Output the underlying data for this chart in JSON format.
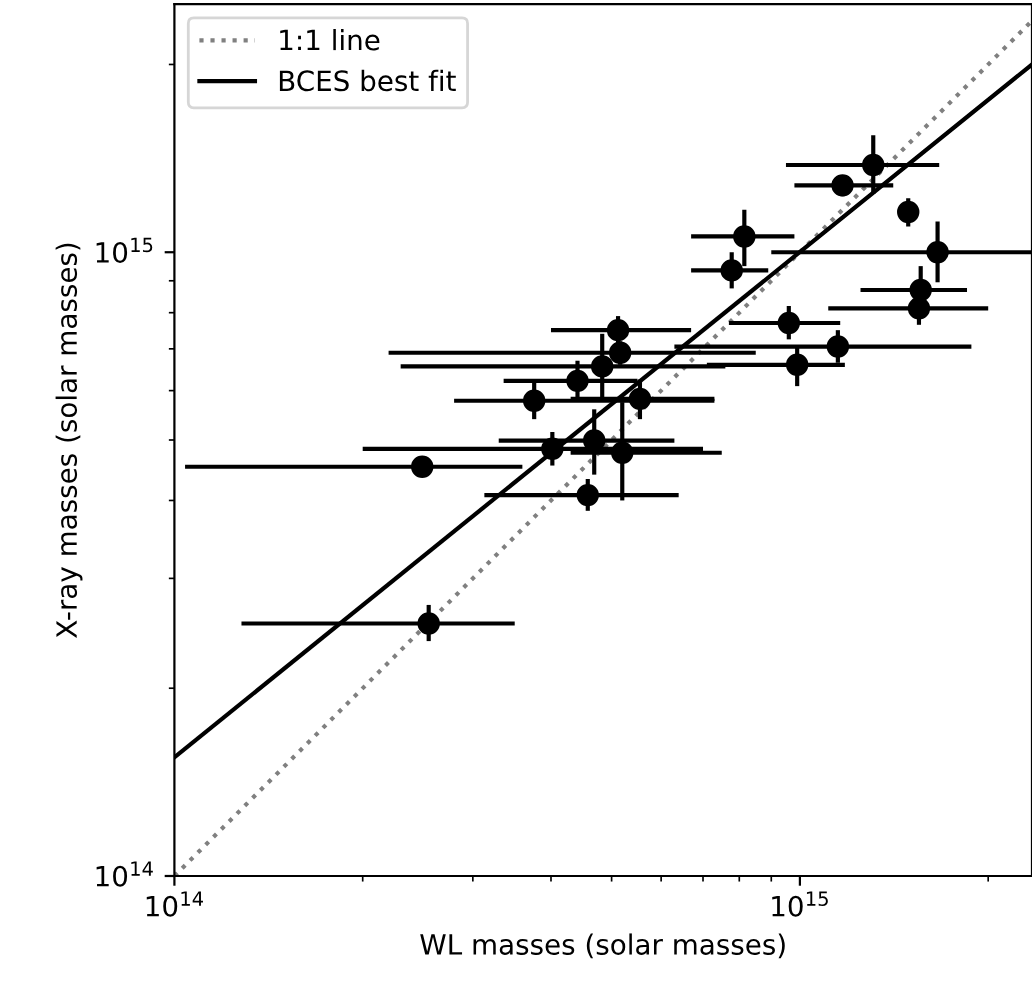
{
  "chart_data": {
    "type": "scatter",
    "xlabel": "WL masses (solar masses)",
    "ylabel": "X-ray masses (solar masses)",
    "log": "xy",
    "xlim": [
      100000000000000.0,
      2350000000000000.0
    ],
    "ylim": [
      100000000000000.0,
      2500000000000000.0
    ],
    "xticks": [
      {
        "value": 100000000000000.0,
        "label": "10$^{14}$"
      },
      {
        "value": 1000000000000000.0,
        "label": "10$^{15}$"
      }
    ],
    "yticks": [
      {
        "value": 100000000000000.0,
        "label": "10$^{14}$"
      },
      {
        "value": 1000000000000000.0,
        "label": "10$^{15}$"
      }
    ],
    "legend": "top left",
    "grid": false,
    "series": [
      {
        "name": "1:1 line",
        "type": "line",
        "color": "#808080",
        "line_style": "dotted",
        "marker": "none",
        "x": [
          100000000000000.0,
          2350000000000000.0
        ],
        "values": [
          100000000000000.0,
          2350000000000000.0
        ]
      },
      {
        "name": "BCES best fit",
        "type": "line",
        "color": "#000000",
        "line_style": "solid",
        "marker": "none",
        "x": [
          100000000000000.0,
          2350000000000000.0
        ],
        "values": [
          155000000000000.0,
          2000000000000000.0
        ]
      },
      {
        "color": "#000000",
        "marker": "circle",
        "x": [
          1310000000000000.0,
          1170000000000000.0,
          1490000000000000.0,
          1660000000000000.0,
          815000000000000.0,
          778000000000000.0,
          1560000000000000.0,
          1550000000000000.0,
          960000000000000.0,
          1150000000000000.0,
          990000000000000.0,
          512000000000000.0,
          516000000000000.0,
          483000000000000.0,
          441000000000000.0,
          376000000000000.0,
          555000000000000.0,
          469000000000000.0,
          402000000000000.0,
          520000000000000.0,
          249000000000000.0,
          458000000000000.0,
          255000000000000.0
        ],
        "values": [
          1380000000000000.0,
          1280000000000000.0,
          1160000000000000.0,
          1000000000000000.0,
          1060000000000000.0,
          935000000000000.0,
          870000000000000.0,
          813000000000000.0,
          770000000000000.0,
          706000000000000.0,
          660000000000000.0,
          750000000000000.0,
          690000000000000.0,
          656000000000000.0,
          622000000000000.0,
          578000000000000.0,
          582000000000000.0,
          499000000000000.0,
          484000000000000.0,
          477000000000000.0,
          453000000000000.0,
          408000000000000.0,
          254000000000000.0
        ],
        "xerrors": [
          [
            950000000000000.0,
            1670000000000000.0
          ],
          [
            980000000000000.0,
            1410000000000000.0
          ],
          null,
          [
            900000000000000.0,
            2350000000000000.0
          ],
          [
            670000000000000.0,
            980000000000000.0
          ],
          [
            670000000000000.0,
            890000000000000.0
          ],
          [
            1250000000000000.0,
            1850000000000000.0
          ],
          [
            1110000000000000.0,
            2000000000000000.0
          ],
          [
            770000000000000.0,
            1160000000000000.0
          ],
          [
            630000000000000.0,
            1880000000000000.0
          ],
          [
            710000000000000.0,
            1180000000000000.0
          ],
          [
            400000000000000.0,
            670000000000000.0
          ],
          [
            220000000000000.0,
            850000000000000.0
          ],
          [
            230000000000000.0,
            760000000000000.0
          ],
          [
            336000000000000.0,
            550000000000000.0
          ],
          [
            280000000000000.0,
            730000000000000.0
          ],
          [
            430000000000000.0,
            730000000000000.0
          ],
          [
            330000000000000.0,
            630000000000000.0
          ],
          [
            200000000000000.0,
            700000000000000.0
          ],
          [
            430000000000000.0,
            750000000000000.0
          ],
          [
            104000000000000.0,
            360000000000000.0
          ],
          [
            313000000000000.0,
            640000000000000.0
          ],
          [
            128000000000000.0,
            350000000000000.0
          ]
        ],
        "errors": [
          [
            1240000000000000.0,
            1540000000000000.0
          ],
          [
            1230000000000000.0,
            1330000000000000.0
          ],
          [
            1100000000000000.0,
            1220000000000000.0
          ],
          [
            895000000000000.0,
            1120000000000000.0
          ],
          [
            950000000000000.0,
            1170000000000000.0
          ],
          [
            875000000000000.0,
            1000000000000000.0
          ],
          [
            790000000000000.0,
            950000000000000.0
          ],
          [
            765000000000000.0,
            860000000000000.0
          ],
          [
            725000000000000.0,
            820000000000000.0
          ],
          [
            665000000000000.0,
            750000000000000.0
          ],
          [
            610000000000000.0,
            710000000000000.0
          ],
          [
            710000000000000.0,
            790000000000000.0
          ],
          [
            660000000000000.0,
            720000000000000.0
          ],
          [
            580000000000000.0,
            740000000000000.0
          ],
          [
            580000000000000.0,
            670000000000000.0
          ],
          [
            540000000000000.0,
            620000000000000.0
          ],
          [
            540000000000000.0,
            625000000000000.0
          ],
          [
            440000000000000.0,
            560000000000000.0
          ],
          [
            455000000000000.0,
            515000000000000.0
          ],
          [
            400000000000000.0,
            575000000000000.0
          ],
          [
            437000000000000.0,
            470000000000000.0
          ],
          [
            385000000000000.0,
            433000000000000.0
          ],
          [
            238000000000000.0,
            272000000000000.0
          ]
        ]
      }
    ]
  }
}
